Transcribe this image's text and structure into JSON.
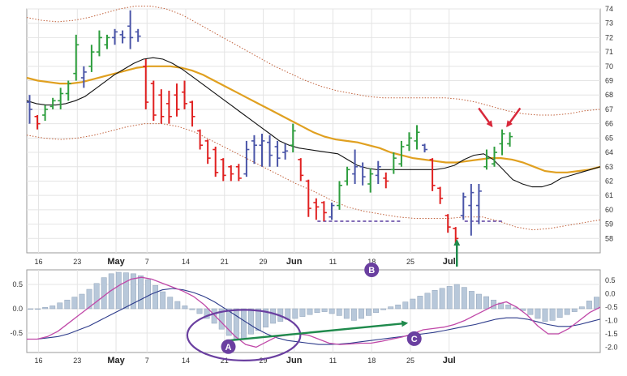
{
  "chart_data": [
    {
      "type": "ohlc",
      "panel": "price",
      "ylim": [
        57,
        74
      ],
      "y_ticks": [
        "74",
        "73",
        "72",
        "71",
        "70",
        "69",
        "68",
        "67",
        "66",
        "65",
        "64",
        "63",
        "62",
        "61",
        "60",
        "59",
        "58"
      ],
      "x_ticks": [
        {
          "label": "16",
          "bar": 1,
          "bold": false
        },
        {
          "label": "23",
          "bar": 6,
          "bold": false
        },
        {
          "label": "May",
          "bar": 11,
          "bold": true
        },
        {
          "label": "7",
          "bar": 15,
          "bold": false
        },
        {
          "label": "14",
          "bar": 20,
          "bold": false
        },
        {
          "label": "21",
          "bar": 25,
          "bold": false
        },
        {
          "label": "29",
          "bar": 30,
          "bold": false
        },
        {
          "label": "Jun",
          "bar": 34,
          "bold": true
        },
        {
          "label": "11",
          "bar": 39,
          "bold": false
        },
        {
          "label": "18",
          "bar": 44,
          "bold": false
        },
        {
          "label": "25",
          "bar": 49,
          "bold": false
        },
        {
          "label": "Jul",
          "bar": 54,
          "bold": true
        }
      ],
      "colors": {
        "up": "#2e9e3e",
        "down": "#e02020",
        "neutral": "#4a55a8",
        "sma": "#111111",
        "ema": "#e0a020",
        "envelope": "#c0603a"
      },
      "bars": [
        {
          "o": 67.5,
          "h": 68.0,
          "l": 66.0,
          "c": 67.0,
          "d": "n"
        },
        {
          "o": 66.5,
          "h": 66.6,
          "l": 65.6,
          "c": 66.0,
          "d": "d"
        },
        {
          "o": 66.6,
          "h": 67.3,
          "l": 66.2,
          "c": 67.0,
          "d": "u"
        },
        {
          "o": 67.2,
          "h": 67.8,
          "l": 67.0,
          "c": 67.6,
          "d": "u"
        },
        {
          "o": 67.6,
          "h": 68.5,
          "l": 67.0,
          "c": 68.1,
          "d": "u"
        },
        {
          "o": 68.1,
          "h": 69.0,
          "l": 67.6,
          "c": 68.8,
          "d": "u"
        },
        {
          "o": 69.5,
          "h": 72.2,
          "l": 69.0,
          "c": 71.5,
          "d": "u"
        },
        {
          "o": 69.2,
          "h": 70.0,
          "l": 68.5,
          "c": 69.6,
          "d": "n"
        },
        {
          "o": 70.0,
          "h": 71.5,
          "l": 69.6,
          "c": 71.0,
          "d": "u"
        },
        {
          "o": 71.0,
          "h": 72.5,
          "l": 70.7,
          "c": 72.0,
          "d": "u"
        },
        {
          "o": 71.5,
          "h": 72.2,
          "l": 71.2,
          "c": 72.0,
          "d": "u"
        },
        {
          "o": 72.0,
          "h": 72.6,
          "l": 71.5,
          "c": 72.4,
          "d": "n"
        },
        {
          "o": 72.2,
          "h": 72.5,
          "l": 71.6,
          "c": 72.0,
          "d": "n"
        },
        {
          "o": 72.8,
          "h": 73.9,
          "l": 71.2,
          "c": 72.0,
          "d": "n"
        },
        {
          "o": 72.4,
          "h": 72.6,
          "l": 71.7,
          "c": 72.1,
          "d": "n"
        },
        {
          "o": 70.0,
          "h": 70.5,
          "l": 67.0,
          "c": 67.5,
          "d": "d"
        },
        {
          "o": 68.8,
          "h": 69.0,
          "l": 66.2,
          "c": 66.6,
          "d": "d"
        },
        {
          "o": 68.0,
          "h": 68.4,
          "l": 66.0,
          "c": 66.5,
          "d": "d"
        },
        {
          "o": 67.4,
          "h": 68.3,
          "l": 66.0,
          "c": 66.5,
          "d": "d"
        },
        {
          "o": 68.0,
          "h": 68.8,
          "l": 66.5,
          "c": 67.0,
          "d": "d"
        },
        {
          "o": 68.2,
          "h": 69.0,
          "l": 67.0,
          "c": 67.4,
          "d": "d"
        },
        {
          "o": 67.5,
          "h": 67.6,
          "l": 65.8,
          "c": 66.5,
          "d": "d"
        },
        {
          "o": 65.5,
          "h": 65.6,
          "l": 64.2,
          "c": 64.5,
          "d": "d"
        },
        {
          "o": 64.8,
          "h": 64.9,
          "l": 63.2,
          "c": 63.6,
          "d": "d"
        },
        {
          "o": 64.2,
          "h": 64.4,
          "l": 62.3,
          "c": 62.6,
          "d": "d"
        },
        {
          "o": 63.5,
          "h": 63.6,
          "l": 62.0,
          "c": 62.4,
          "d": "d"
        },
        {
          "o": 63.0,
          "h": 63.1,
          "l": 62.0,
          "c": 62.5,
          "d": "d"
        },
        {
          "o": 63.0,
          "h": 63.2,
          "l": 62.0,
          "c": 62.2,
          "d": "d"
        },
        {
          "o": 62.5,
          "h": 64.8,
          "l": 62.3,
          "c": 64.2,
          "d": "n"
        },
        {
          "o": 64.8,
          "h": 65.2,
          "l": 63.2,
          "c": 64.5,
          "d": "n"
        },
        {
          "o": 64.5,
          "h": 65.3,
          "l": 63.0,
          "c": 64.8,
          "d": "n"
        },
        {
          "o": 64.7,
          "h": 65.2,
          "l": 63.0,
          "c": 63.8,
          "d": "n"
        },
        {
          "o": 64.4,
          "h": 64.8,
          "l": 63.0,
          "c": 63.6,
          "d": "n"
        },
        {
          "o": 64.0,
          "h": 64.6,
          "l": 63.5,
          "c": 64.1,
          "d": "n"
        },
        {
          "o": 64.5,
          "h": 66.0,
          "l": 64.0,
          "c": 65.5,
          "d": "u"
        },
        {
          "o": 63.5,
          "h": 63.6,
          "l": 62.0,
          "c": 62.4,
          "d": "d"
        },
        {
          "o": 62.0,
          "h": 62.1,
          "l": 59.5,
          "c": 60.1,
          "d": "d"
        },
        {
          "o": 60.5,
          "h": 60.8,
          "l": 59.3,
          "c": 60.2,
          "d": "d"
        },
        {
          "o": 60.5,
          "h": 60.6,
          "l": 59.2,
          "c": 59.8,
          "d": "d"
        },
        {
          "o": 59.5,
          "h": 60.5,
          "l": 59.3,
          "c": 60.3,
          "d": "n"
        },
        {
          "o": 60.3,
          "h": 62.0,
          "l": 60.0,
          "c": 61.7,
          "d": "u"
        },
        {
          "o": 62.0,
          "h": 63.0,
          "l": 61.7,
          "c": 62.8,
          "d": "u"
        },
        {
          "o": 62.5,
          "h": 64.2,
          "l": 61.8,
          "c": 63.0,
          "d": "n"
        },
        {
          "o": 63.0,
          "h": 63.3,
          "l": 61.7,
          "c": 62.3,
          "d": "n"
        },
        {
          "o": 61.8,
          "h": 62.9,
          "l": 61.2,
          "c": 62.5,
          "d": "u"
        },
        {
          "o": 62.4,
          "h": 63.4,
          "l": 61.8,
          "c": 63.0,
          "d": "n"
        },
        {
          "o": 62.2,
          "h": 62.6,
          "l": 61.5,
          "c": 62.0,
          "d": "d"
        },
        {
          "o": 62.8,
          "h": 64.0,
          "l": 62.5,
          "c": 63.6,
          "d": "u"
        },
        {
          "o": 63.2,
          "h": 64.8,
          "l": 63.0,
          "c": 64.4,
          "d": "u"
        },
        {
          "o": 64.5,
          "h": 65.4,
          "l": 64.1,
          "c": 65.0,
          "d": "u"
        },
        {
          "o": 64.8,
          "h": 65.9,
          "l": 64.2,
          "c": 65.4,
          "d": "u"
        },
        {
          "o": 64.5,
          "h": 64.6,
          "l": 64.0,
          "c": 64.2,
          "d": "n"
        },
        {
          "o": 63.5,
          "h": 63.6,
          "l": 61.3,
          "c": 61.7,
          "d": "d"
        },
        {
          "o": 61.5,
          "h": 61.6,
          "l": 60.4,
          "c": 60.8,
          "d": "d"
        },
        {
          "o": 59.6,
          "h": 59.7,
          "l": 58.4,
          "c": 58.8,
          "d": "d"
        },
        {
          "o": 58.7,
          "h": 58.8,
          "l": 57.6,
          "c": 58.0,
          "d": "d"
        },
        {
          "o": 59.6,
          "h": 61.2,
          "l": 59.3,
          "c": 60.9,
          "d": "n"
        },
        {
          "o": 60.3,
          "h": 61.8,
          "l": 58.2,
          "c": 61.2,
          "d": "n"
        },
        {
          "o": 60.3,
          "h": 61.8,
          "l": 59.0,
          "c": 61.3,
          "d": "n"
        },
        {
          "o": 63.0,
          "h": 64.2,
          "l": 62.8,
          "c": 63.6,
          "d": "u"
        },
        {
          "o": 63.2,
          "h": 64.4,
          "l": 63.0,
          "c": 64.0,
          "d": "u"
        },
        {
          "o": 64.6,
          "h": 65.6,
          "l": 63.8,
          "c": 65.3,
          "d": "u"
        },
        {
          "o": 64.6,
          "h": 65.4,
          "l": 64.4,
          "c": 65.1,
          "d": "u"
        }
      ],
      "sma": [
        67.6,
        67.4,
        67.3,
        67.3,
        67.4,
        67.6,
        67.9,
        68.4,
        68.9,
        69.4,
        69.8,
        70.2,
        70.5,
        70.6,
        70.5,
        70.2,
        69.8,
        69.3,
        68.8,
        68.3,
        67.8,
        67.3,
        66.8,
        66.3,
        65.8,
        65.3,
        64.8,
        64.5,
        64.3,
        64.2,
        64.1,
        64.0,
        63.9,
        63.5,
        63.1,
        62.9,
        62.8,
        62.8,
        62.8,
        62.8,
        62.8,
        62.8,
        62.8,
        62.9,
        63.1,
        63.5,
        63.8,
        63.9,
        63.5,
        62.8,
        62.1,
        61.8,
        61.6,
        61.6,
        61.8,
        62.2,
        62.4,
        62.6,
        62.8,
        63.0
      ],
      "ema": [
        69.2,
        69.0,
        68.9,
        68.8,
        68.8,
        68.9,
        69.1,
        69.3,
        69.5,
        69.7,
        69.9,
        70.0,
        70.0,
        70.0,
        69.9,
        69.7,
        69.4,
        69.0,
        68.6,
        68.2,
        67.8,
        67.4,
        67.0,
        66.6,
        66.2,
        65.8,
        65.4,
        65.1,
        64.9,
        64.8,
        64.7,
        64.5,
        64.3,
        64.0,
        63.8,
        63.6,
        63.5,
        63.4,
        63.3,
        63.3,
        63.4,
        63.5,
        63.6,
        63.6,
        63.5,
        63.3,
        63.0,
        62.7,
        62.6,
        62.6,
        62.7,
        62.8,
        63.0
      ],
      "envelope_upper": [
        73.4,
        73.2,
        73.1,
        73.2,
        73.4,
        73.7,
        74.0,
        74.2,
        74.2,
        74.0,
        73.6,
        73.0,
        72.4,
        71.8,
        71.2,
        70.6,
        70.0,
        69.5,
        69.0,
        68.6,
        68.3,
        68.1,
        67.9,
        67.8,
        67.8,
        67.8,
        67.8,
        67.8,
        67.7,
        67.5,
        67.2,
        66.9,
        66.7,
        66.6,
        66.6,
        66.7,
        66.9,
        67.0
      ],
      "envelope_lower": [
        65.2,
        65.0,
        64.9,
        65.0,
        65.2,
        65.5,
        65.8,
        66.0,
        66.0,
        65.8,
        65.4,
        64.8,
        64.2,
        63.6,
        63.0,
        62.4,
        61.8,
        61.3,
        60.7,
        60.2,
        59.9,
        59.7,
        59.5,
        59.4,
        59.4,
        59.4,
        59.5,
        59.5,
        59.2,
        58.8,
        58.6,
        58.7,
        58.9,
        59.1,
        59.3
      ],
      "support_levels": [
        {
          "value": 59.2,
          "from_bar": 37,
          "to_bar": 48
        },
        {
          "value": 59.2,
          "from_bar": 56,
          "to_bar": 61
        }
      ],
      "arrows": [
        {
          "target_bar": 59.5,
          "target_value": 65.5,
          "color": "red"
        },
        {
          "target_bar": 61.5,
          "target_value": 65.5,
          "color": "red"
        },
        {
          "target_bar": 55.0,
          "target_value": 58.3,
          "color": "green"
        }
      ]
    },
    {
      "type": "macd",
      "panel": "indicator",
      "left_ticks": [
        "0.5",
        "0.0",
        "-0.5"
      ],
      "right_ticks": [
        "0.5",
        "0.0",
        "-0.5",
        "-1.0",
        "-1.5",
        "-2.0"
      ],
      "hist_left_ylim": [
        -0.9,
        0.8
      ],
      "lines_right_ylim": [
        -2.2,
        0.9
      ],
      "x_ticks": [
        {
          "label": "16",
          "bar": 1,
          "bold": false
        },
        {
          "label": "23",
          "bar": 6,
          "bold": false
        },
        {
          "label": "May",
          "bar": 11,
          "bold": true
        },
        {
          "label": "7",
          "bar": 15,
          "bold": false
        },
        {
          "label": "14",
          "bar": 20,
          "bold": false
        },
        {
          "label": "21",
          "bar": 25,
          "bold": false
        },
        {
          "label": "29",
          "bar": 30,
          "bold": false
        },
        {
          "label": "Jun",
          "bar": 34,
          "bold": true
        },
        {
          "label": "11",
          "bar": 39,
          "bold": false
        },
        {
          "label": "18",
          "bar": 44,
          "bold": false
        },
        {
          "label": "25",
          "bar": 49,
          "bold": false
        },
        {
          "label": "Jul",
          "bar": 54,
          "bold": true
        }
      ],
      "histogram": [
        0.0,
        0.0,
        0.03,
        0.06,
        0.12,
        0.18,
        0.24,
        0.3,
        0.4,
        0.52,
        0.64,
        0.72,
        0.75,
        0.74,
        0.72,
        0.68,
        0.6,
        0.48,
        0.35,
        0.24,
        0.15,
        0.06,
        -0.02,
        -0.1,
        -0.2,
        -0.3,
        -0.42,
        -0.55,
        -0.62,
        -0.62,
        -0.52,
        -0.45,
        -0.38,
        -0.3,
        -0.26,
        -0.22,
        -0.2,
        -0.16,
        -0.12,
        -0.08,
        -0.06,
        -0.1,
        -0.14,
        -0.2,
        -0.24,
        -0.2,
        -0.14,
        -0.08,
        -0.02,
        0.04,
        0.08,
        0.14,
        0.2,
        0.26,
        0.32,
        0.38,
        0.42,
        0.46,
        0.5,
        0.44,
        0.36,
        0.3,
        0.25,
        0.18,
        0.12,
        0.08,
        0.02,
        -0.04,
        -0.12,
        -0.2,
        -0.26,
        -0.24,
        -0.18,
        -0.12,
        -0.06,
        0.04,
        0.16,
        0.24
      ],
      "macd_line": [
        -1.7,
        -1.7,
        -1.6,
        -1.4,
        -1.1,
        -0.8,
        -0.5,
        -0.2,
        0.1,
        0.35,
        0.55,
        0.62,
        0.55,
        0.4,
        0.25,
        0.1,
        -0.1,
        -0.4,
        -0.8,
        -1.2,
        -1.6,
        -1.9,
        -2.0,
        -1.8,
        -1.6,
        -1.55,
        -1.5,
        -1.55,
        -1.7,
        -1.85,
        -1.9,
        -1.88,
        -1.85,
        -1.85,
        -1.78,
        -1.7,
        -1.62,
        -1.5,
        -1.35,
        -1.3,
        -1.25,
        -1.15,
        -1.0,
        -0.8,
        -0.6,
        -0.4,
        -0.3,
        -0.5,
        -0.8,
        -1.2,
        -1.5,
        -1.5,
        -1.3,
        -1.0,
        -0.7,
        -0.5
      ],
      "signal_line": [
        -1.7,
        -1.7,
        -1.65,
        -1.6,
        -1.5,
        -1.35,
        -1.2,
        -1.0,
        -0.8,
        -0.6,
        -0.4,
        -0.2,
        0.0,
        0.15,
        0.2,
        0.15,
        0.05,
        -0.1,
        -0.3,
        -0.55,
        -0.8,
        -1.05,
        -1.3,
        -1.5,
        -1.65,
        -1.75,
        -1.8,
        -1.85,
        -1.9,
        -1.9,
        -1.88,
        -1.85,
        -1.8,
        -1.75,
        -1.7,
        -1.65,
        -1.6,
        -1.55,
        -1.5,
        -1.45,
        -1.38,
        -1.3,
        -1.22,
        -1.15,
        -1.05,
        -0.95,
        -0.9,
        -0.9,
        -0.95,
        -1.05,
        -1.15,
        -1.22,
        -1.22,
        -1.15,
        -1.05,
        -0.95
      ],
      "divergence_arrow": {
        "from_bar": 25.5,
        "from_value": -1.75,
        "to_bar": 48.5,
        "to_value": -1.1
      },
      "ellipse": {
        "center_bar": 27.5,
        "center_value": -1.55,
        "radius_bars": 7.3,
        "radius_value": 0.95
      }
    }
  ],
  "labels": [
    {
      "text": "A",
      "panel": "indicator",
      "bar": 25.5,
      "value": -1.98,
      "color": "#6a3fa0"
    },
    {
      "text": "B",
      "panel": "indicator",
      "bar": 44.0,
      "value": 0.9,
      "color": "#6a3fa0"
    },
    {
      "text": "C",
      "panel": "indicator",
      "bar": 49.5,
      "value": -1.68,
      "color": "#6a3fa0"
    }
  ]
}
